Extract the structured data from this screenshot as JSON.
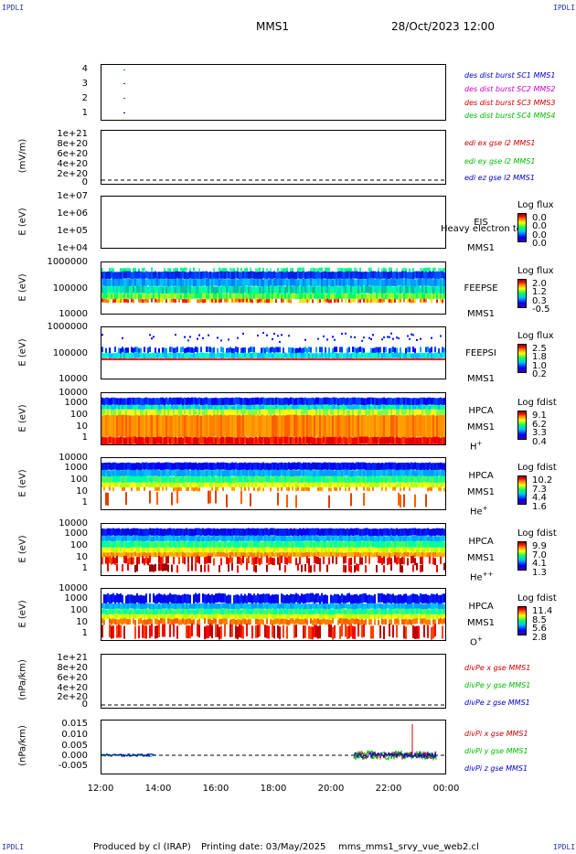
{
  "corners": {
    "tl": "IPDLI",
    "tr": "IPDLI",
    "bl": "IPDLI",
    "br": "IPDLI"
  },
  "header": {
    "mission": "MMS1",
    "datetime": "28/Oct/2023 12:00"
  },
  "footer": {
    "produced": "Produced by cl (IRAP)",
    "printing": "Printing date: 03/May/2025",
    "script": "mms_mms1_srvy_vue_web2.cl"
  },
  "x_ticks": [
    "12:00",
    "14:00",
    "16:00",
    "18:00",
    "20:00",
    "22:00",
    "00:00"
  ],
  "panels": {
    "p1": {
      "ticks": [
        "4",
        "3",
        "2",
        "1"
      ],
      "legend": [
        "des dist burst SC1 MMS1",
        "des dist burst SC2 MMS2",
        "des dist burst SC3 MMS3",
        "des dist burst SC4 MMS4"
      ],
      "colors": [
        "#0000cc",
        "#cc00cc",
        "#cc0000",
        "#00bb00"
      ]
    },
    "p2": {
      "ylabel": "(mV/m)",
      "ticks": [
        "1e+21",
        "8e+20",
        "6e+20",
        "4e+20",
        "2e+20",
        "0"
      ],
      "legend": [
        "edi ex gse l2 MMS1",
        "edi ey gse l2 MMS1",
        "edi ez gse l2 MMS1"
      ],
      "colors": [
        "#cc0000",
        "#00bb00",
        "#0000cc"
      ]
    },
    "p3": {
      "ylabel": "E (eV)",
      "ticks": [
        "1e+07",
        "1e+06",
        "1e+05",
        "1e+04"
      ],
      "t1": "EIS",
      "t2": "MMS1",
      "overlay": "Heavy electron to",
      "cbtitle": "Log flux",
      "cb": [
        "0.0",
        "0.0",
        "0.0",
        "0.0"
      ]
    },
    "p4": {
      "ylabel": "E (eV)",
      "ticks": [
        "1000000",
        "100000",
        "10000"
      ],
      "t1": "FEEPSE",
      "t2": "MMS1",
      "cbtitle": "Log flux",
      "cb": [
        "2.0",
        "1.2",
        "0.3",
        "-0.5"
      ]
    },
    "p5": {
      "ylabel": "E (eV)",
      "ticks": [
        "1000000",
        "100000",
        "10000"
      ],
      "t1": "FEEPSI",
      "t2": "MMS1",
      "cbtitle": "Log flux",
      "cb": [
        "2.5",
        "1.8",
        "1.0",
        "0.2"
      ]
    },
    "p6": {
      "ylabel": "E (eV)",
      "ticks": [
        "10000",
        "1000",
        "100",
        "10",
        "1"
      ],
      "t1": "HPCA",
      "t2": "MMS1",
      "t3": "H",
      "t3sup": "+",
      "cbtitle": "Log fdist",
      "cb": [
        "9.1",
        "6.2",
        "3.3",
        "0.4"
      ]
    },
    "p7": {
      "ylabel": "E (eV)",
      "ticks": [
        "10000",
        "1000",
        "100",
        "10",
        "1"
      ],
      "t1": "HPCA",
      "t2": "MMS1",
      "t3": "He",
      "t3sup": "+",
      "cbtitle": "Log fdist",
      "cb": [
        "10.2",
        "7.3",
        "4.4",
        "1.6"
      ]
    },
    "p8": {
      "ylabel": "E (eV)",
      "ticks": [
        "10000",
        "1000",
        "100",
        "10",
        "1"
      ],
      "t1": "HPCA",
      "t2": "MMS1",
      "t3": "He",
      "t3sup": "++",
      "cbtitle": "Log fdist",
      "cb": [
        "9.9",
        "7.0",
        "4.1",
        "1.3"
      ]
    },
    "p9": {
      "ylabel": "E (eV)",
      "ticks": [
        "10000",
        "1000",
        "100",
        "10",
        "1"
      ],
      "t1": "HPCA",
      "t2": "MMS1",
      "t3": "O",
      "t3sup": "+",
      "cbtitle": "Log fdist",
      "cb": [
        "11.4",
        "8.5",
        "5.6",
        "2.8"
      ]
    },
    "p10": {
      "ylabel": "(nPa/km)",
      "ticks": [
        "1e+21",
        "8e+20",
        "6e+20",
        "4e+20",
        "2e+20",
        "0"
      ],
      "legend": [
        "divPe x gse MMS1",
        "divPe y gse MMS1",
        "divPe z gse MMS1"
      ],
      "colors": [
        "#cc0000",
        "#00bb00",
        "#0000cc"
      ]
    },
    "p11": {
      "ylabel": "(nPa/km)",
      "ticks": [
        "0.015",
        "0.010",
        "0.005",
        "0.000",
        "-0.005"
      ],
      "legend": [
        "divPi x gse MMS1",
        "divPi y gse MMS1",
        "divPi z gse MMS1"
      ],
      "colors": [
        "#cc0000",
        "#00bb00",
        "#0000cc"
      ]
    }
  },
  "chart_data": {
    "type": "heatmap",
    "x_range": [
      "12:00",
      "00:00"
    ],
    "burst_markers": {
      "SC1": [
        12.8
      ],
      "SC2": [
        12.8
      ],
      "SC3": [
        12.8
      ],
      "SC4": [
        12.8
      ]
    },
    "divPi_ylim": [
      -0.008,
      0.016
    ],
    "divPi_spike": {
      "time": "22:53",
      "x_value": 0.014
    },
    "data_coverage_divPi": [
      [
        "12:00",
        "13:50"
      ],
      [
        "20:50",
        "23:40"
      ]
    ]
  }
}
